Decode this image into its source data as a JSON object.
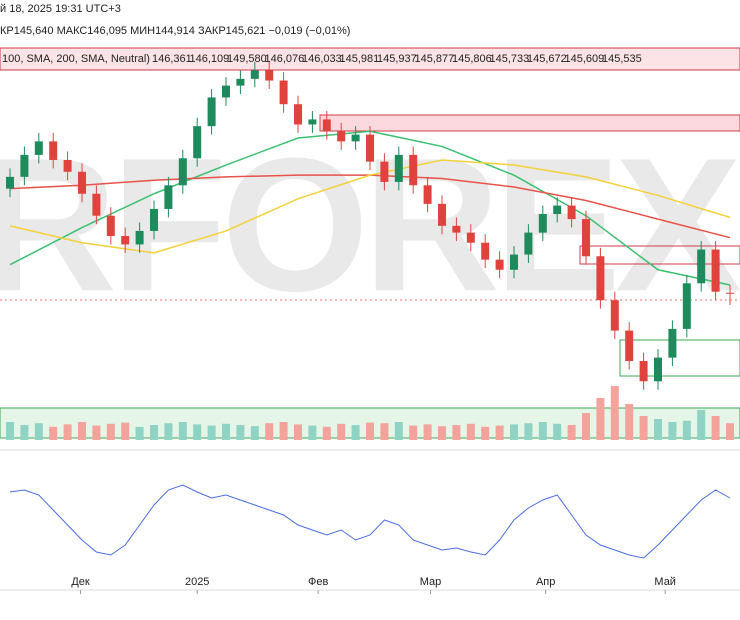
{
  "header": {
    "date": "й 18, 2025 19:31 UTC+3",
    "ohlc": "КР145,640  МАКС146,095  МИН144,914  ЗАКР145,621  −0,019 (−0,01%)",
    "indicator": "100, SMA, 200, SMA, Neutral)",
    "indicator_values": [
      "146,361",
      "146,109",
      "149,580",
      "146,076",
      "146,033",
      "145,981",
      "145,937",
      "145,877",
      "145,806",
      "145,733",
      "145,672",
      "145,609",
      "145,535"
    ]
  },
  "watermark": "RFOREX",
  "chart_data": {
    "type": "candlestick",
    "candles": {
      "open": [
        151.8,
        152.5,
        153.8,
        154.6,
        153.5,
        152.8,
        151.5,
        150.2,
        149.0,
        148.5,
        149.3,
        150.6,
        152.0,
        153.6,
        155.5,
        157.2,
        157.9,
        158.3,
        158.8,
        158.2,
        156.8,
        155.6,
        155.9,
        155.2,
        154.6,
        155.0,
        153.4,
        152.2,
        153.8,
        152.0,
        150.9,
        149.6,
        149.2,
        148.6,
        147.6,
        147.0,
        147.9,
        149.2,
        150.3,
        150.8,
        150.0,
        147.8,
        145.2,
        143.4,
        141.6,
        140.4,
        141.8,
        143.5,
        146.2,
        148.2,
        145.64
      ],
      "high": [
        153.0,
        154.3,
        155.1,
        155.1,
        154.0,
        153.3,
        152.0,
        150.7,
        149.5,
        149.8,
        151.1,
        152.5,
        154.1,
        156.0,
        157.7,
        158.4,
        158.8,
        159.3,
        159.3,
        158.7,
        157.3,
        156.4,
        156.4,
        155.7,
        155.5,
        155.5,
        153.9,
        154.3,
        154.3,
        152.5,
        151.4,
        150.1,
        149.7,
        149.1,
        148.1,
        148.4,
        149.7,
        150.8,
        151.3,
        151.3,
        150.5,
        148.3,
        145.7,
        143.9,
        142.1,
        142.3,
        144.0,
        146.7,
        148.7,
        148.7,
        146.095
      ],
      "low": [
        151.3,
        152.0,
        153.3,
        153.0,
        152.3,
        151.0,
        149.7,
        148.5,
        148.0,
        148.0,
        148.8,
        150.1,
        151.5,
        153.1,
        155.0,
        156.7,
        157.4,
        157.8,
        157.7,
        156.3,
        155.1,
        155.1,
        154.7,
        154.1,
        154.1,
        152.9,
        151.7,
        151.7,
        151.5,
        150.4,
        149.1,
        148.7,
        148.1,
        147.1,
        146.5,
        146.5,
        147.4,
        148.7,
        149.8,
        149.5,
        147.3,
        144.7,
        142.9,
        141.1,
        139.9,
        139.9,
        141.3,
        143.0,
        145.7,
        145.2,
        144.914
      ],
      "close": [
        152.5,
        153.8,
        154.6,
        153.5,
        152.8,
        151.5,
        150.2,
        149.0,
        148.5,
        149.3,
        150.6,
        152.0,
        153.6,
        155.5,
        157.2,
        157.9,
        158.3,
        158.8,
        158.2,
        156.8,
        155.6,
        155.9,
        155.2,
        154.6,
        155.0,
        153.4,
        152.2,
        153.8,
        152.0,
        150.9,
        149.6,
        149.2,
        148.6,
        147.6,
        147.0,
        147.9,
        149.2,
        150.3,
        150.8,
        150.0,
        147.8,
        145.2,
        143.4,
        141.6,
        140.4,
        141.8,
        143.5,
        146.2,
        148.2,
        145.7,
        145.621
      ]
    },
    "up_color": "#1e8a5e",
    "down_color": "#e0433e",
    "ylim": [
      138.7,
      160.6
    ],
    "overlays": [
      {
        "color": "#3cc070",
        "x": [
          0,
          5,
          10,
          15,
          20,
          25,
          30,
          35,
          40,
          45,
          50
        ],
        "values": [
          147.3,
          149.5,
          151.5,
          153.2,
          154.8,
          155.2,
          154.3,
          152.6,
          150.2,
          147.0,
          146.1
        ]
      },
      {
        "color": "#e8524a",
        "x": [
          0,
          5,
          10,
          15,
          20,
          25,
          30,
          35,
          40,
          45,
          50
        ],
        "values": [
          151.8,
          152.0,
          152.3,
          152.5,
          152.6,
          152.6,
          152.4,
          151.9,
          151.1,
          150.0,
          148.9
        ]
      },
      {
        "color": "#f2d13a",
        "x": [
          0,
          5,
          10,
          15,
          20,
          25,
          30,
          35,
          40,
          45,
          50
        ],
        "values": [
          149.6,
          148.6,
          148.0,
          149.3,
          151.2,
          152.6,
          153.5,
          153.2,
          152.5,
          151.4,
          150.1
        ]
      }
    ],
    "volume": {
      "values": [
        30,
        25,
        28,
        22,
        26,
        30,
        24,
        27,
        29,
        22,
        25,
        28,
        30,
        26,
        24,
        27,
        25,
        23,
        28,
        30,
        26,
        24,
        22,
        27,
        25,
        29,
        28,
        30,
        24,
        26,
        23,
        25,
        27,
        22,
        24,
        26,
        28,
        30,
        27,
        25,
        45,
        70,
        90,
        60,
        40,
        35,
        30,
        32,
        50,
        40,
        28
      ],
      "ylim": [
        0,
        100
      ],
      "up_color": "#8fd3c4",
      "down_color": "#f3a39b"
    },
    "oscillator": {
      "values": [
        78,
        80,
        75,
        60,
        45,
        30,
        18,
        15,
        25,
        45,
        65,
        80,
        85,
        78,
        72,
        75,
        70,
        65,
        60,
        55,
        45,
        40,
        35,
        40,
        30,
        35,
        50,
        45,
        30,
        25,
        20,
        22,
        18,
        15,
        30,
        50,
        62,
        70,
        75,
        55,
        35,
        25,
        20,
        15,
        12,
        25,
        40,
        55,
        70,
        80,
        72
      ],
      "ylim": [
        0,
        100
      ],
      "color": "#4a6ee0"
    },
    "xticks": [
      {
        "value": 4.9,
        "label": "Дек"
      },
      {
        "value": 13,
        "label": "2025"
      },
      {
        "value": 21.4,
        "label": "Фев"
      },
      {
        "value": 29.2,
        "label": "Мар"
      },
      {
        "value": 37.2,
        "label": "Апр"
      },
      {
        "value": 45.5,
        "label": "Май"
      }
    ]
  }
}
